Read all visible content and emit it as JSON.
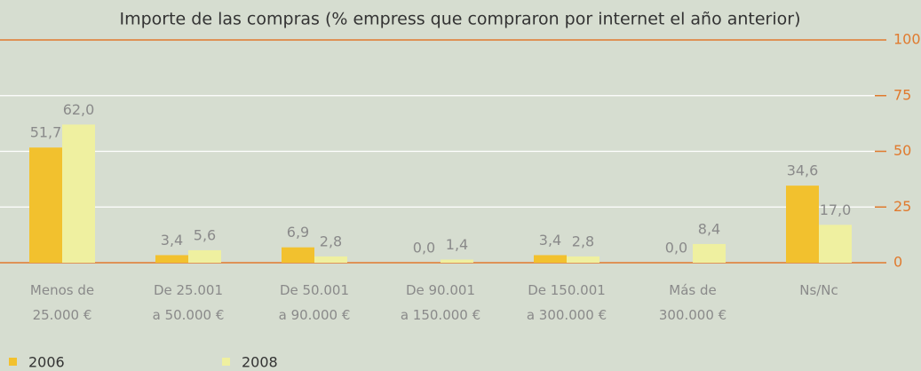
{
  "chart_data": {
    "type": "bar",
    "title": "Importe de las compras (% empress que compraron por internet el año anterior)",
    "categories": [
      "Menos de\n25.000 €",
      "De 25.001\na 50.000 €",
      "De 50.001\na 90.000 €",
      "De 90.001\na 150.000 €",
      "De 150.001\na 300.000 €",
      "Más de\n300.000 €",
      "Ns/Nc"
    ],
    "series": [
      {
        "name": "2006",
        "color": "#f2c12e",
        "values": [
          51.7,
          3.4,
          6.9,
          0.0,
          3.4,
          0.0,
          34.6
        ],
        "value_labels": [
          "51,7",
          "3,4",
          "6,9",
          "0,0",
          "3,4",
          "0,0",
          "34,6"
        ]
      },
      {
        "name": "2008",
        "color": "#eff0a0",
        "values": [
          62.0,
          5.6,
          2.8,
          1.4,
          2.8,
          8.4,
          17.0
        ],
        "value_labels": [
          "62,0",
          "5,6",
          "2,8",
          "1,4",
          "2,8",
          "8,4",
          "17,0"
        ]
      }
    ],
    "ylim": [
      0,
      100
    ],
    "yticks": [
      0,
      25,
      50,
      75,
      100
    ],
    "grid": true
  }
}
